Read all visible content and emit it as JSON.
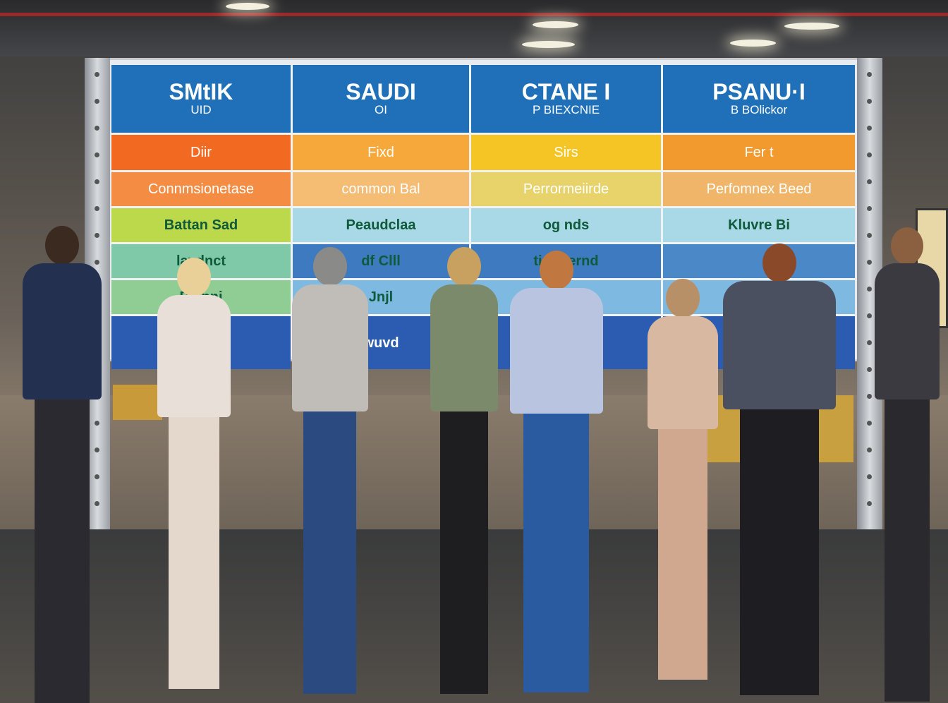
{
  "board": {
    "headers": [
      {
        "title": "SMtIK",
        "sub": "UID"
      },
      {
        "title": "SAUDI",
        "sub": "OI"
      },
      {
        "title": "CTANE   I",
        "sub": "P BIEXCNIE"
      },
      {
        "title": "PSANU·I",
        "sub": "B BOlickor"
      }
    ],
    "rows": [
      {
        "cells": [
          "Diir",
          "Fixd",
          "Sirs",
          "Fer t"
        ],
        "colors": [
          "#f26a21",
          "#f6a93a",
          "#f5c526",
          "#f39a2e"
        ],
        "text": "#ffffff"
      },
      {
        "cells": [
          "Connmsionetase",
          "common Bal",
          "Perrormeiirde",
          "Perfomnex Beed"
        ],
        "colors": [
          "#f58c43",
          "#f5bc74",
          "#e8d36a",
          "#f1b569"
        ],
        "text": "#ffffff"
      },
      {
        "cells": [
          "Battan Sad",
          "Peaudclaa",
          "og nds",
          "Kluvre Bi"
        ],
        "colors": [
          "#bcd94c",
          "#a9d8e6",
          "#a9d8e6",
          "#a9d8e6"
        ],
        "text": "#0e5a3a"
      },
      {
        "cells": [
          "lavdnct",
          "df Clll",
          "tinuuernd",
          ""
        ],
        "colors": [
          "#80c9a8",
          "#3d7ac0",
          "#3d7ac0",
          "#4a88c8"
        ],
        "text": "#0e5a3a"
      },
      {
        "cells": [
          "Bainnj",
          "Jnjl",
          "",
          ""
        ],
        "colors": [
          "#8fcd94",
          "#7db9e0",
          "#7db9e0",
          "#7db9e0"
        ],
        "text": "#0e5a3a"
      },
      {
        "cells": [
          "",
          "wuvd",
          "",
          ""
        ],
        "colors": [
          "#2c5bb2",
          "#2c5bb2",
          "#2c5bb2",
          "#2c5bb2"
        ],
        "text": "#ffffff"
      }
    ],
    "header_color": "#1f70b8"
  }
}
